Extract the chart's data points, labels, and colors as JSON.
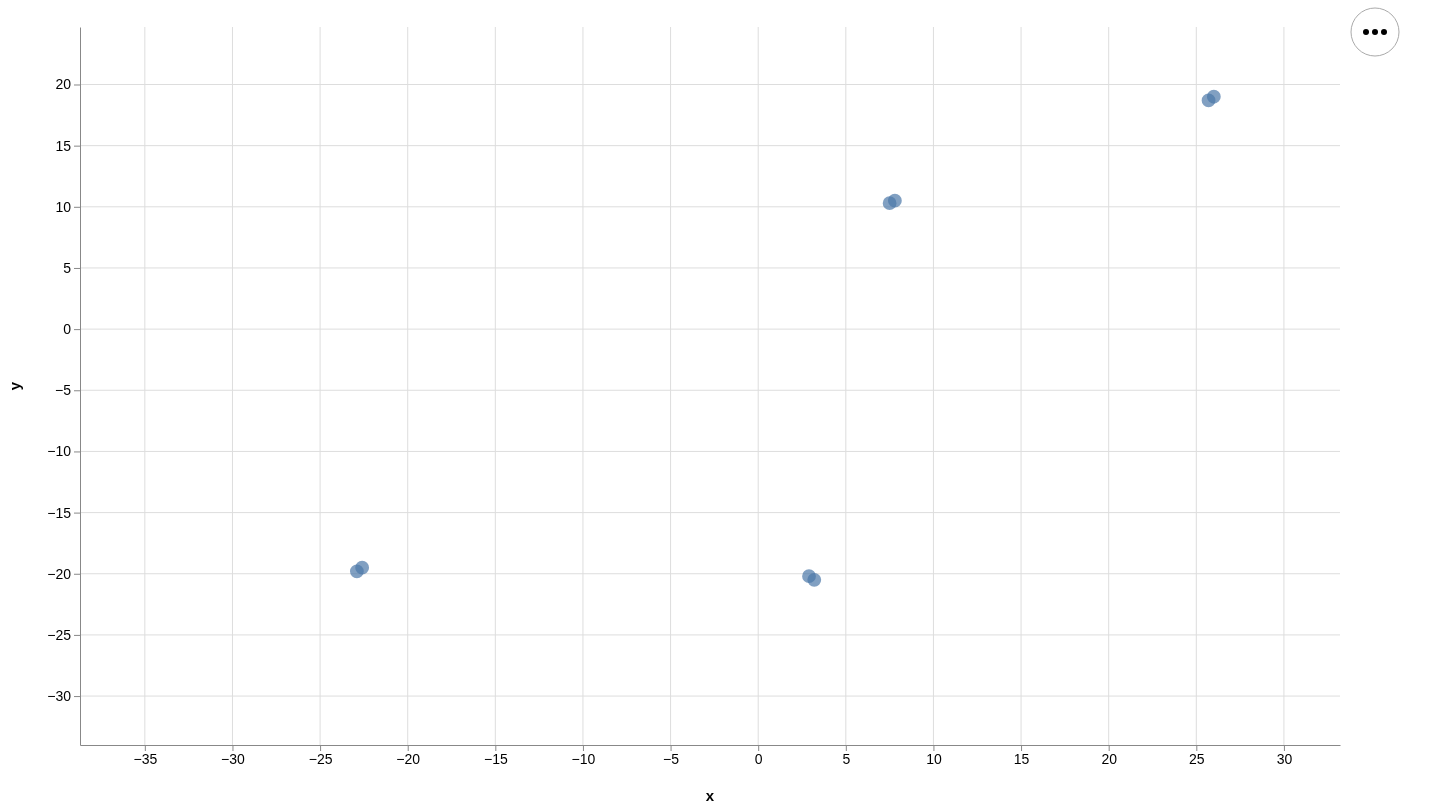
{
  "chart_data": {
    "type": "scatter",
    "xlabel": "x",
    "ylabel": "y",
    "x": [
      -22.9,
      -22.6,
      2.9,
      3.2,
      7.5,
      7.8,
      25.7,
      26.0
    ],
    "values": [
      -19.8,
      -19.5,
      -20.2,
      -20.5,
      10.3,
      10.5,
      18.7,
      19.0
    ],
    "color": "#4c78a8",
    "marker": "circle",
    "grid": true,
    "xlim": [
      -38.7,
      33.2
    ],
    "ylim": [
      -34,
      24.7
    ],
    "xticks": [
      -35,
      -30,
      -25,
      -20,
      -15,
      -10,
      -5,
      0,
      5,
      10,
      15,
      20,
      25,
      30
    ],
    "yticks": [
      -30,
      -25,
      -20,
      -15,
      -10,
      -5,
      0,
      5,
      10,
      15,
      20
    ]
  }
}
